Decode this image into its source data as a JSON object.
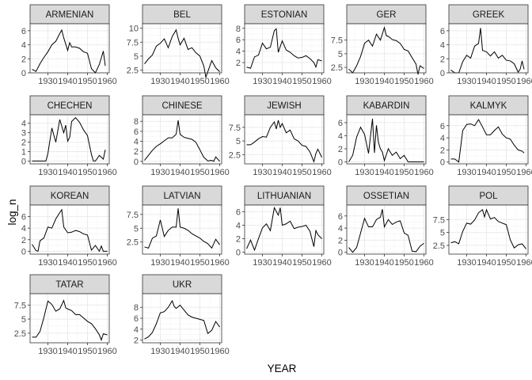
{
  "chart_data": {
    "type": "line",
    "xlabel": "YEAR",
    "ylabel": "log_n",
    "x_ticks": [
      1930,
      1940,
      1950,
      1960
    ],
    "grid": true,
    "facets": [
      {
        "name": "ARMENIAN",
        "ylim": [
          0,
          7
        ],
        "y_ticks": [
          0,
          2,
          4,
          6
        ],
        "x": [
          1922,
          1924,
          1926,
          1928,
          1930,
          1932,
          1934,
          1936,
          1937,
          1938,
          1940,
          1941,
          1942,
          1944,
          1946,
          1948,
          1950,
          1952,
          1954,
          1956,
          1958,
          1959
        ],
        "y": [
          0.5,
          0.2,
          1.3,
          2.2,
          3.0,
          4.0,
          4.5,
          5.6,
          6.1,
          5.0,
          3.2,
          4.3,
          3.7,
          3.7,
          3.5,
          3.0,
          2.8,
          0.6,
          0,
          1.2,
          3.1,
          1.0
        ]
      },
      {
        "name": "BEL",
        "ylim": [
          2,
          10.8
        ],
        "y_ticks": [
          2.5,
          5.0,
          7.5,
          10.0
        ],
        "x": [
          1922,
          1924,
          1926,
          1928,
          1930,
          1932,
          1934,
          1936,
          1938,
          1939,
          1940,
          1942,
          1944,
          1946,
          1948,
          1950,
          1952,
          1953,
          1954,
          1956,
          1958,
          1960
        ],
        "y": [
          3.6,
          4.5,
          5.2,
          6.8,
          7.3,
          8.1,
          6.5,
          8.5,
          9.7,
          8.2,
          7.0,
          8.2,
          6.2,
          6.5,
          5.6,
          5.0,
          3.2,
          1.2,
          2.2,
          4.2,
          2.9,
          2.2
        ]
      },
      {
        "name": "ESTONIAN",
        "ylim": [
          0.2,
          8.8
        ],
        "y_ticks": [
          2,
          4,
          6,
          8
        ],
        "x": [
          1922,
          1924,
          1926,
          1928,
          1930,
          1932,
          1934,
          1936,
          1937,
          1938,
          1940,
          1942,
          1944,
          1946,
          1948,
          1950,
          1952,
          1954,
          1956,
          1957,
          1958,
          1960
        ],
        "y": [
          1.2,
          1.0,
          3.0,
          3.3,
          5.4,
          4.4,
          4.7,
          7.6,
          7.9,
          3.8,
          5.8,
          4.2,
          3.8,
          3.2,
          2.8,
          2.9,
          3.2,
          2.7,
          2.0,
          1.2,
          2.5,
          2.3
        ]
      },
      {
        "name": "GER",
        "ylim": [
          1.5,
          10.5
        ],
        "y_ticks": [
          2.5,
          5.0,
          7.5
        ],
        "x": [
          1922,
          1924,
          1926,
          1928,
          1930,
          1932,
          1934,
          1936,
          1938,
          1940,
          1941,
          1942,
          1944,
          1946,
          1948,
          1950,
          1952,
          1954,
          1956,
          1957,
          1958,
          1960
        ],
        "y": [
          2.2,
          1.5,
          2.8,
          4.5,
          6.9,
          7.5,
          6.4,
          8.6,
          7.5,
          9.8,
          8.3,
          8.2,
          7.6,
          7.4,
          6.9,
          5.8,
          5.5,
          4.3,
          3.1,
          1.2,
          2.8,
          2.3
        ]
      },
      {
        "name": "GREEK",
        "ylim": [
          0,
          7
        ],
        "y_ticks": [
          0,
          2,
          4,
          6
        ],
        "x": [
          1922,
          1924,
          1926,
          1928,
          1930,
          1932,
          1934,
          1936,
          1937,
          1938,
          1940,
          1942,
          1944,
          1946,
          1948,
          1950,
          1952,
          1954,
          1956,
          1957,
          1958,
          1959
        ],
        "y": [
          0.4,
          0,
          0,
          1.6,
          2.5,
          2.1,
          3.8,
          4.2,
          6.4,
          3.2,
          3.0,
          2.4,
          3.0,
          2.1,
          2.5,
          1.8,
          1.7,
          1.3,
          0.1,
          0.5,
          1.7,
          0.5
        ]
      },
      {
        "name": "CHECHEN",
        "ylim": [
          -0.3,
          4.9
        ],
        "y_ticks": [
          0,
          1,
          2,
          3,
          4
        ],
        "x": [
          1922,
          1924,
          1926,
          1928,
          1929,
          1930,
          1932,
          1934,
          1936,
          1938,
          1939,
          1940,
          1941,
          1942,
          1944,
          1946,
          1948,
          1950,
          1952,
          1953,
          1954,
          1956,
          1958,
          1959
        ],
        "y": [
          0,
          0,
          0,
          0,
          0,
          0.8,
          3.5,
          2.0,
          4.4,
          3.0,
          3.8,
          2.1,
          2.5,
          4.2,
          4.6,
          4.1,
          3.3,
          2.7,
          0.7,
          0,
          0,
          0.6,
          0.2,
          1.2
        ]
      },
      {
        "name": "CHINESE",
        "ylim": [
          -0.5,
          9.3
        ],
        "y_ticks": [
          0,
          2,
          4,
          6,
          8
        ],
        "x": [
          1922,
          1924,
          1926,
          1928,
          1930,
          1932,
          1934,
          1936,
          1938,
          1939,
          1940,
          1942,
          1944,
          1946,
          1948,
          1950,
          1952,
          1954,
          1956,
          1957,
          1958,
          1960
        ],
        "y": [
          0.2,
          1.2,
          2.2,
          3.0,
          3.5,
          4.1,
          4.7,
          4.7,
          5.4,
          8.2,
          5.4,
          4.8,
          4.6,
          4.4,
          3.8,
          2.3,
          0.8,
          0.1,
          0.2,
          0,
          0.9,
          0
        ]
      },
      {
        "name": "JEWISH",
        "ylim": [
          0.8,
          9.8
        ],
        "y_ticks": [
          2.5,
          5.0,
          7.5
        ],
        "x": [
          1922,
          1924,
          1926,
          1928,
          1930,
          1932,
          1934,
          1936,
          1937,
          1938,
          1939,
          1940,
          1942,
          1944,
          1946,
          1948,
          1950,
          1952,
          1954,
          1956,
          1957,
          1958,
          1960
        ],
        "y": [
          4.3,
          4.3,
          4.8,
          5.4,
          5.8,
          5.7,
          7.5,
          8.5,
          7.2,
          8.8,
          7.5,
          8.2,
          6.5,
          7.0,
          5.4,
          5.0,
          4.2,
          4.0,
          3.0,
          1.2,
          2.7,
          3.5,
          2.0
        ]
      },
      {
        "name": "KABARDIN",
        "ylim": [
          -0.3,
          7.2
        ],
        "y_ticks": [
          0,
          2,
          4,
          6
        ],
        "x": [
          1922,
          1924,
          1926,
          1928,
          1930,
          1932,
          1934,
          1935,
          1936,
          1937,
          1938,
          1939,
          1940,
          1942,
          1944,
          1946,
          1948,
          1950,
          1952,
          1954,
          1956,
          1958,
          1960
        ],
        "y": [
          0,
          1.0,
          3.8,
          5.3,
          4.2,
          1.3,
          6.6,
          1.4,
          5.6,
          3.0,
          2.0,
          1.5,
          0.2,
          2.0,
          1.0,
          1.5,
          0.5,
          1.0,
          0,
          0,
          0,
          0,
          0
        ]
      },
      {
        "name": "KALMYK",
        "ylim": [
          -0.3,
          7.8
        ],
        "y_ticks": [
          0,
          2,
          4,
          6
        ],
        "x": [
          1922,
          1924,
          1926,
          1928,
          1930,
          1932,
          1934,
          1936,
          1938,
          1940,
          1942,
          1944,
          1946,
          1948,
          1950,
          1952,
          1954,
          1956,
          1958,
          1959
        ],
        "y": [
          0.5,
          0.5,
          0,
          5.2,
          6.2,
          6.3,
          6.0,
          7.0,
          5.8,
          4.5,
          4.5,
          5.2,
          5.8,
          4.6,
          4.0,
          3.8,
          2.8,
          2.0,
          1.8,
          1.5
        ]
      },
      {
        "name": "KOREAN",
        "ylim": [
          -0.5,
          8.0
        ],
        "y_ticks": [
          0,
          2,
          4,
          6
        ],
        "x": [
          1922,
          1924,
          1925,
          1926,
          1928,
          1930,
          1932,
          1934,
          1936,
          1937,
          1938,
          1940,
          1942,
          1944,
          1946,
          1948,
          1950,
          1952,
          1954,
          1956,
          1957,
          1958,
          1960
        ],
        "y": [
          1.2,
          0.1,
          0,
          1.8,
          2.3,
          4.2,
          4.0,
          5.6,
          6.7,
          7.2,
          4.2,
          3.2,
          3.3,
          3.6,
          3.4,
          3.0,
          2.8,
          0.2,
          1.0,
          0,
          0.9,
          0,
          0
        ]
      },
      {
        "name": "LATVIAN",
        "ylim": [
          0.3,
          9.2
        ],
        "y_ticks": [
          2.5,
          5.0,
          7.5
        ],
        "x": [
          1922,
          1924,
          1926,
          1928,
          1930,
          1932,
          1934,
          1936,
          1938,
          1939,
          1940,
          1942,
          1944,
          1946,
          1948,
          1950,
          1952,
          1954,
          1956,
          1958,
          1960
        ],
        "y": [
          1.6,
          1.4,
          3.2,
          3.6,
          6.5,
          3.5,
          4.6,
          5.2,
          5.2,
          8.6,
          5.2,
          5.0,
          4.6,
          4.0,
          3.6,
          3.2,
          2.6,
          2.2,
          1.4,
          3.0,
          2.0
        ]
      },
      {
        "name": "LITHUANIAN",
        "ylim": [
          -0.3,
          7.0
        ],
        "y_ticks": [
          0,
          2,
          4,
          6
        ],
        "x": [
          1922,
          1924,
          1926,
          1928,
          1930,
          1932,
          1934,
          1936,
          1938,
          1939,
          1940,
          1942,
          1944,
          1946,
          1948,
          1950,
          1952,
          1954,
          1956,
          1957,
          1958,
          1960
        ],
        "y": [
          0.5,
          1.8,
          0.3,
          2.0,
          3.6,
          4.2,
          3.2,
          6.6,
          5.5,
          6.6,
          4.0,
          4.2,
          4.6,
          3.5,
          3.7,
          3.8,
          4.0,
          3.1,
          0.8,
          3.2,
          2.6,
          2.0
        ]
      },
      {
        "name": "OSSETIAN",
        "ylim": [
          -0.3,
          7.8
        ],
        "y_ticks": [
          0,
          2,
          4,
          6
        ],
        "x": [
          1922,
          1924,
          1926,
          1928,
          1930,
          1932,
          1934,
          1936,
          1938,
          1939,
          1940,
          1942,
          1944,
          1946,
          1948,
          1950,
          1952,
          1954,
          1956,
          1958,
          1960
        ],
        "y": [
          0.8,
          0,
          0.8,
          3.2,
          5.6,
          4.2,
          4.2,
          5.4,
          5.8,
          7.1,
          4.2,
          5.4,
          4.6,
          5.0,
          5.2,
          3.2,
          2.8,
          0.2,
          0.1,
          1.0,
          1.5
        ]
      },
      {
        "name": "POL",
        "ylim": [
          0.8,
          10.3
        ],
        "y_ticks": [
          2.5,
          5.0,
          7.5
        ],
        "x": [
          1922,
          1924,
          1926,
          1928,
          1930,
          1932,
          1934,
          1936,
          1938,
          1939,
          1940,
          1942,
          1944,
          1946,
          1948,
          1950,
          1952,
          1954,
          1956,
          1958,
          1960
        ],
        "y": [
          3.0,
          3.2,
          2.8,
          5.2,
          6.8,
          6.6,
          7.4,
          8.8,
          9.4,
          8.0,
          9.4,
          7.6,
          7.9,
          7.1,
          6.8,
          6.5,
          3.6,
          2.0,
          2.6,
          2.8,
          1.8
        ]
      },
      {
        "name": "TATAR",
        "ylim": [
          0.8,
          9.5
        ],
        "y_ticks": [
          2.5,
          5.0,
          7.5
        ],
        "x": [
          1922,
          1924,
          1926,
          1928,
          1930,
          1932,
          1934,
          1936,
          1938,
          1939,
          1940,
          1942,
          1944,
          1946,
          1948,
          1950,
          1952,
          1954,
          1956,
          1957,
          1958,
          1960
        ],
        "y": [
          1.8,
          1.8,
          2.8,
          5.3,
          8.2,
          7.6,
          6.4,
          6.8,
          8.3,
          7.0,
          6.8,
          6.5,
          5.8,
          5.8,
          5.2,
          4.6,
          4.2,
          3.3,
          2.2,
          1.3,
          2.4,
          2.2
        ]
      },
      {
        "name": "UKR",
        "ylim": [
          1.5,
          10.5
        ],
        "y_ticks": [
          2,
          4,
          6,
          8
        ],
        "x": [
          1922,
          1924,
          1926,
          1928,
          1930,
          1932,
          1934,
          1936,
          1937,
          1938,
          1940,
          1942,
          1944,
          1946,
          1948,
          1950,
          1952,
          1954,
          1956,
          1958,
          1960
        ],
        "y": [
          2.2,
          2.6,
          3.4,
          5.0,
          7.0,
          7.2,
          8.0,
          9.2,
          8.2,
          7.8,
          8.4,
          7.5,
          6.6,
          6.2,
          6.0,
          5.8,
          5.6,
          3.2,
          3.8,
          5.4,
          4.4
        ]
      }
    ]
  }
}
